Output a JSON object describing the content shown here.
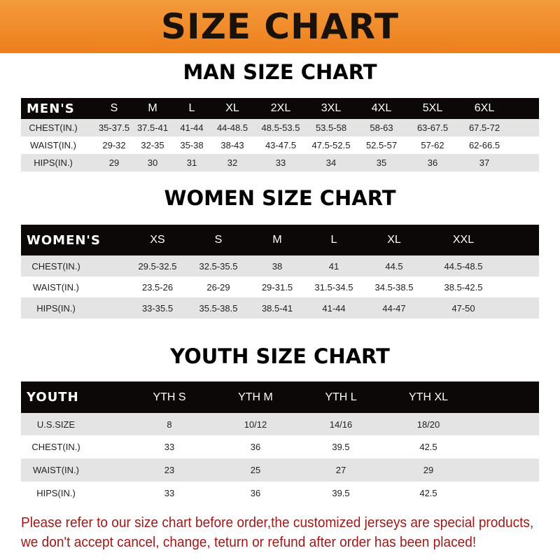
{
  "banner_title": "SIZE CHART",
  "men": {
    "title": "MAN SIZE CHART",
    "header_label": "MEN'S",
    "sizes": [
      "S",
      "M",
      "L",
      "XL",
      "2XL",
      "3XL",
      "4XL",
      "5XL",
      "6XL"
    ],
    "rows": [
      {
        "label": "CHEST(IN.)",
        "values": [
          "35-37.5",
          "37.5-41",
          "41-44",
          "44-48.5",
          "48.5-53.5",
          "53.5-58",
          "58-63",
          "63-67.5",
          "67.5-72"
        ]
      },
      {
        "label": "WAIST(IN.)",
        "values": [
          "29-32",
          "32-35",
          "35-38",
          "38-43",
          "43-47.5",
          "47.5-52.5",
          "52.5-57",
          "57-62",
          "62-66.5"
        ]
      },
      {
        "label": "HIPS(IN.)",
        "values": [
          "29",
          "30",
          "31",
          "32",
          "33",
          "34",
          "35",
          "36",
          "37"
        ]
      }
    ]
  },
  "women": {
    "title": "WOMEN SIZE CHART",
    "header_label": "WOMEN'S",
    "sizes": [
      "XS",
      "S",
      "M",
      "L",
      "XL",
      "XXL"
    ],
    "rows": [
      {
        "label": "CHEST(IN.)",
        "values": [
          "29.5-32.5",
          "32.5-35.5",
          "38",
          "41",
          "44.5",
          "44.5-48.5"
        ]
      },
      {
        "label": "WAIST(IN.)",
        "values": [
          "23.5-26",
          "26-29",
          "29-31.5",
          "31.5-34.5",
          "34.5-38.5",
          "38.5-42.5"
        ]
      },
      {
        "label": "HIPS(IN.)",
        "values": [
          "33-35.5",
          "35.5-38.5",
          "38.5-41",
          "41-44",
          "44-47",
          "47-50"
        ]
      }
    ]
  },
  "youth": {
    "title": "YOUTH SIZE CHART",
    "header_label": "YOUTH",
    "sizes": [
      "YTH S",
      "YTH M",
      "YTH L",
      "YTH XL"
    ],
    "rows": [
      {
        "label": "U.S.SIZE",
        "values": [
          "8",
          "10/12",
          "14/16",
          "18/20"
        ]
      },
      {
        "label": "CHEST(IN.)",
        "values": [
          "33",
          "36",
          "39.5",
          "42.5"
        ]
      },
      {
        "label": "WAIST(IN.)",
        "values": [
          "23",
          "25",
          "27",
          "29"
        ]
      },
      {
        "label": "HIPS(IN.)",
        "values": [
          "33",
          "36",
          "39.5",
          "42.5"
        ]
      }
    ]
  },
  "notice": {
    "line1": "Please refer to our size chart before order,the customized jerseys are special products,",
    "line2": "we don't accept cancel, change, teturn or refund after order has been placed!"
  },
  "colors": {
    "banner": "#f08a2a",
    "header_row": "#0c0808",
    "shaded_row": "#e4e4e4",
    "notice": "#a01818"
  }
}
